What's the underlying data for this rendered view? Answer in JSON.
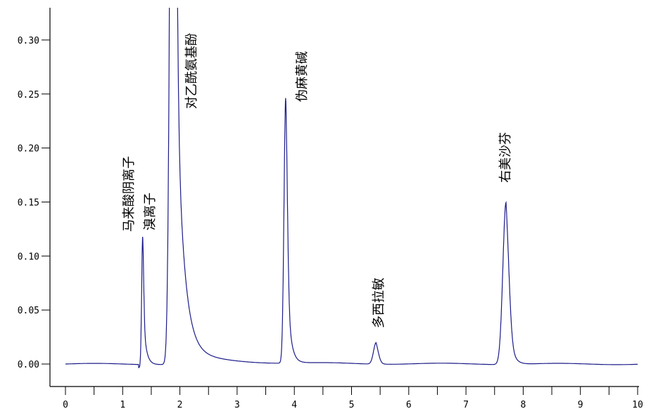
{
  "chart_data": {
    "type": "line",
    "title": "",
    "xlabel": "",
    "ylabel": "",
    "xlim": [
      0,
      10
    ],
    "ylim": [
      -0.03,
      0.33
    ],
    "x_ticks": [
      "0",
      "1",
      "2",
      "3",
      "4",
      "5",
      "6",
      "7",
      "8",
      "9",
      "10"
    ],
    "x_minor_step": 0.5,
    "y_ticks": [
      "0.00",
      "0.05",
      "0.10",
      "0.15",
      "0.20",
      "0.25",
      "0.30"
    ],
    "grid": false,
    "line_color": "#1c1c8a",
    "peaks": [
      {
        "label": "马来酸阴离子",
        "rt": 1.35,
        "height": 0.119
      },
      {
        "label": "溴离子",
        "rt": 1.65,
        "height": null
      },
      {
        "label": "对乙酰氨基酚",
        "rt": 1.88,
        "height": null
      },
      {
        "label": "伪麻黄碱",
        "rt": 3.85,
        "height": 0.246
      },
      {
        "label": "多西拉敏",
        "rt": 5.43,
        "height": 0.02
      },
      {
        "label": "右美沙芬",
        "rt": 7.7,
        "height": 0.15
      }
    ]
  }
}
